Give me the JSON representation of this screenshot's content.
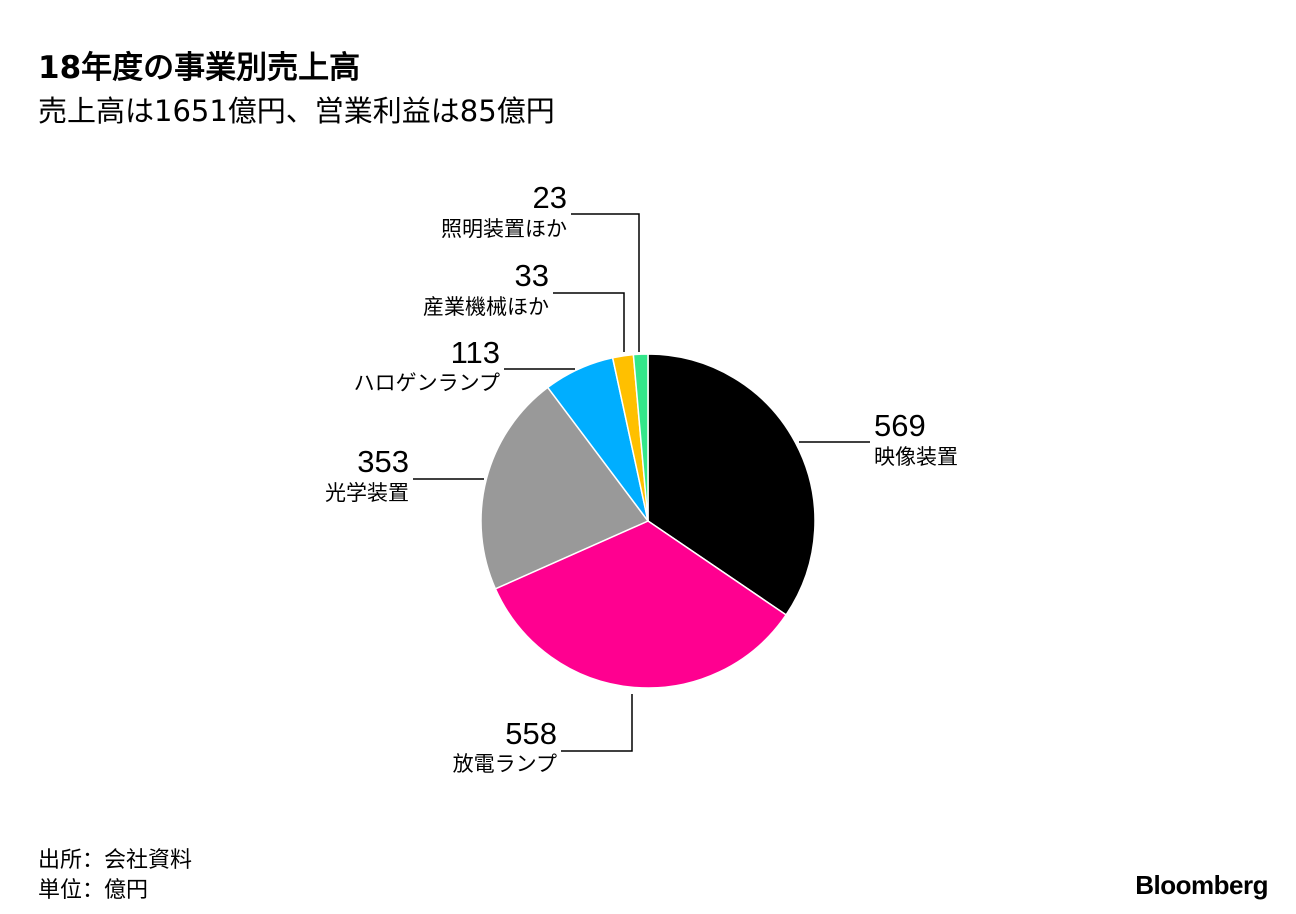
{
  "title": "18年度の事業別売上高",
  "subtitle": "売上高は1651億円、営業利益は85億円",
  "footer": {
    "source": "出所：会社資料",
    "unit": "単位：億円"
  },
  "logo": "Bloomberg",
  "chart_data": {
    "type": "pie",
    "start_angle": "12 o'clock",
    "direction": "clockwise",
    "slices": [
      {
        "label": "映像装置",
        "value": 569,
        "color": "#000000"
      },
      {
        "label": "放電ランプ",
        "value": 558,
        "color": "#ff0090"
      },
      {
        "label": "光学装置",
        "value": 353,
        "color": "#999999"
      },
      {
        "label": "ハロゲンランプ",
        "value": 113,
        "color": "#00aeff"
      },
      {
        "label": "産業機械ほか",
        "value": 33,
        "color": "#ffc000"
      },
      {
        "label": "照明装置ほか",
        "value": 23,
        "color": "#33e68a"
      }
    ]
  }
}
